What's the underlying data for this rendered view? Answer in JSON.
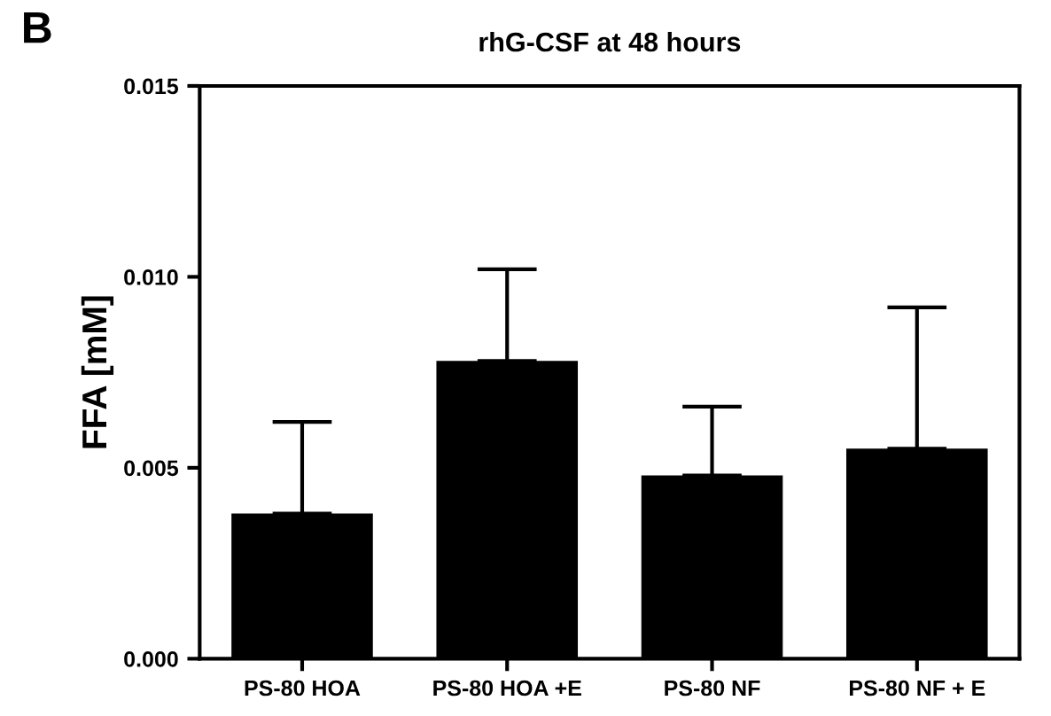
{
  "chart_data": {
    "type": "bar",
    "title": "rhG-CSF at 48 hours",
    "ylabel": "FFA [mM]",
    "annotations": [
      "B"
    ],
    "categories": [
      "PS-80 HOA",
      "PS-80 HOA +E",
      "PS-80 NF",
      "PS-80 NF + E"
    ],
    "values": [
      0.0038,
      0.0078,
      0.0048,
      0.0055
    ],
    "errors": [
      [
        0.0038,
        0.0062
      ],
      [
        0.0078,
        0.0102
      ],
      [
        0.0048,
        0.0066
      ],
      [
        0.0055,
        0.0092
      ]
    ],
    "color": "#000000",
    "ylim": [
      0,
      0.015
    ],
    "yticks": [
      {
        "value": 0,
        "label": "0.000"
      },
      {
        "value": 0.005,
        "label": "0.005"
      },
      {
        "value": 0.01,
        "label": "0.010"
      },
      {
        "value": 0.015,
        "label": "0.015"
      }
    ],
    "grid": false,
    "legend": false
  }
}
